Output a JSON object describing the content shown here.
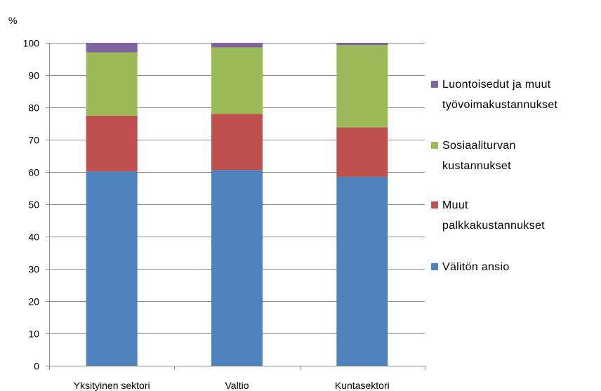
{
  "chart_data": {
    "type": "bar",
    "stacked": true,
    "y_unit_label": "%",
    "categories": [
      "Yksityinen sektori",
      "Valtio",
      "Kuntasektori"
    ],
    "series": [
      {
        "name": "Välitön ansio",
        "color": "#4F81BD",
        "values": [
          60.2,
          60.6,
          58.5
        ]
      },
      {
        "name": "Muut palkkakustannukset",
        "color": "#C0504D",
        "values": [
          17.2,
          17.4,
          15.3
        ]
      },
      {
        "name": "Sosiaaliturvan kustannukset",
        "color": "#9BBB59",
        "values": [
          19.6,
          20.6,
          25.5
        ]
      },
      {
        "name": "Luontoisedut ja muut työvoimakustannukset",
        "color": "#8064A2",
        "values": [
          3.0,
          1.4,
          0.7
        ]
      }
    ],
    "legend_display": [
      {
        "series": 3,
        "lines": [
          "Luontoisedut ja muut",
          "työvoimakustannukset"
        ]
      },
      {
        "series": 2,
        "lines": [
          "Sosiaaliturvan",
          "kustannukset"
        ]
      },
      {
        "series": 1,
        "lines": [
          "Muut",
          "palkkakustannukset"
        ]
      },
      {
        "series": 0,
        "lines": [
          "Välitön ansio"
        ]
      }
    ],
    "ylim": [
      0,
      100
    ],
    "yticks": [
      0,
      10,
      20,
      30,
      40,
      50,
      60,
      70,
      80,
      90,
      100
    ],
    "grid": true,
    "legend_position": "right",
    "title": "",
    "xlabel": "",
    "ylabel": ""
  }
}
